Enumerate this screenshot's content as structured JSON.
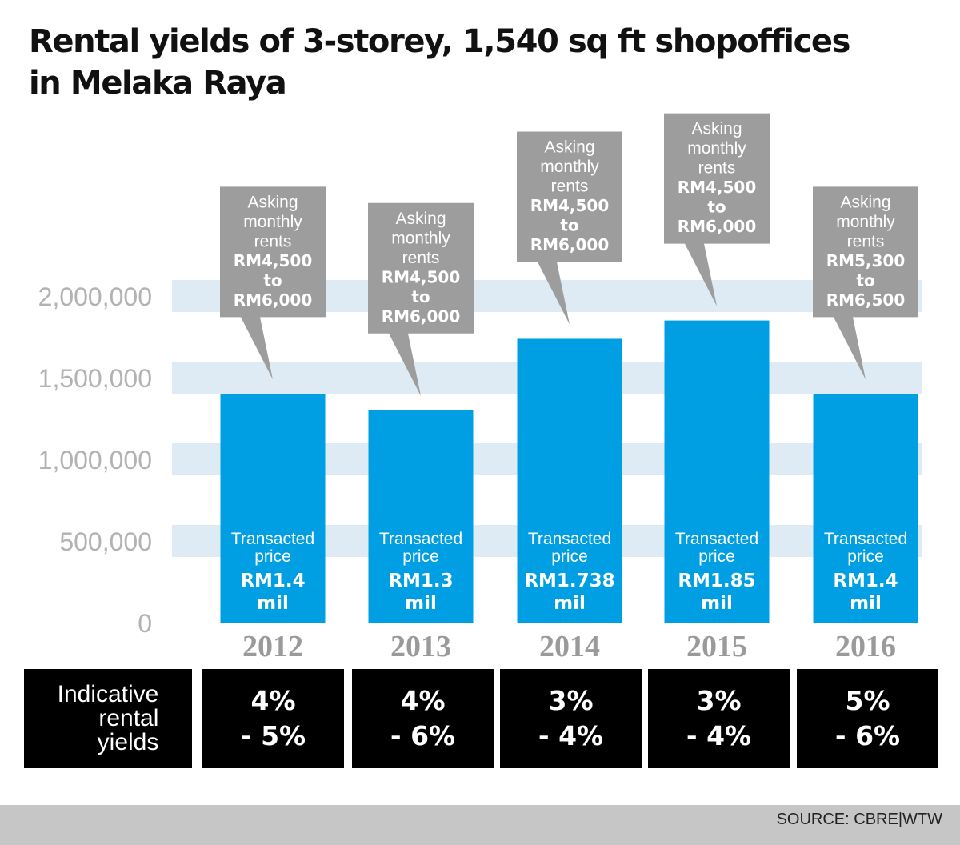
{
  "header": {
    "title_line1": "Rental yields of 3-storey, 1,540 sq ft shopoffices",
    "title_line2": "in Melaka Raya"
  },
  "colors": {
    "bar": "#009fe3",
    "band": "#deebf5",
    "callout": "#9d9d9d",
    "axis_label": "#b2b2b2",
    "year_label": "#9a9a9a",
    "yield_box": "#000000",
    "source_bar": "#c6c6c6"
  },
  "chart_data": {
    "type": "bar",
    "categories": [
      "2012",
      "2013",
      "2014",
      "2015",
      "2016"
    ],
    "values": [
      1400000,
      1300000,
      1738000,
      1850000,
      1400000
    ],
    "ylim": [
      0,
      2000000
    ],
    "yticks": [
      "0",
      "500,000",
      "1,000,000",
      "1,500,000",
      "2,000,000"
    ],
    "ytick_values": [
      0,
      500000,
      1000000,
      1500000,
      2000000
    ],
    "bar_label": "Transacted price",
    "bar_label_lines": [
      "Transacted",
      "price"
    ],
    "bar_values": [
      [
        "RM1.4",
        "mil"
      ],
      [
        "RM1.3",
        "mil"
      ],
      [
        "RM1.738",
        "mil"
      ],
      [
        "RM1.85",
        "mil"
      ],
      [
        "RM1.4",
        "mil"
      ]
    ],
    "callout_label_lines": [
      "Asking",
      "monthly",
      "rents"
    ],
    "callouts": [
      [
        "RM4,500",
        "to",
        "RM6,000"
      ],
      [
        "RM4,500",
        "to",
        "RM6,000"
      ],
      [
        "RM4,500",
        "to",
        "RM6,000"
      ],
      [
        "RM4,500",
        "to",
        "RM6,000"
      ],
      [
        "RM5,300",
        "to",
        "RM6,500"
      ]
    ]
  },
  "yields": {
    "label": "Indicative\nrental\nyields",
    "values": [
      "4%\n- 5%",
      "4%\n- 6%",
      "3%\n- 4%",
      "3%\n- 4%",
      "5%\n- 6%"
    ]
  },
  "source": "SOURCE: CBRE|WTW"
}
